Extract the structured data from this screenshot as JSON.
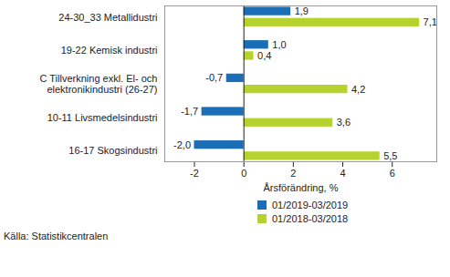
{
  "chart_data": {
    "type": "bar",
    "orientation": "horizontal",
    "categories": [
      "24-30_33 Metallidustri",
      "19-22 Kemisk industri",
      "C Tillverkning exkl. El- och elektronikindustri (26-27)",
      "10-11 Livsmedelsindustri",
      "16-17 Skogsindustri"
    ],
    "series": [
      {
        "name": "01/2019-03/2019",
        "color": "#1b6db5",
        "values": [
          1.9,
          1.0,
          -0.7,
          -1.7,
          -2.0
        ],
        "value_labels": [
          "1,9",
          "1,0",
          "-0,7",
          "-1,7",
          "-2,0"
        ]
      },
      {
        "name": "01/2018-03/2018",
        "color": "#b5d22f",
        "values": [
          7.1,
          0.4,
          4.2,
          3.6,
          5.5
        ],
        "value_labels": [
          "7,1",
          "0,4",
          "4,2",
          "3,6",
          "5,5"
        ]
      }
    ],
    "x_label": "Årsförändring, %",
    "xlim": [
      -3.2,
      7.8
    ],
    "xticks": [
      -2,
      0,
      2,
      4,
      6
    ],
    "grid": false,
    "data_labels": true,
    "legend": "bottom",
    "caption": "Källa: Statistikcentralen"
  }
}
